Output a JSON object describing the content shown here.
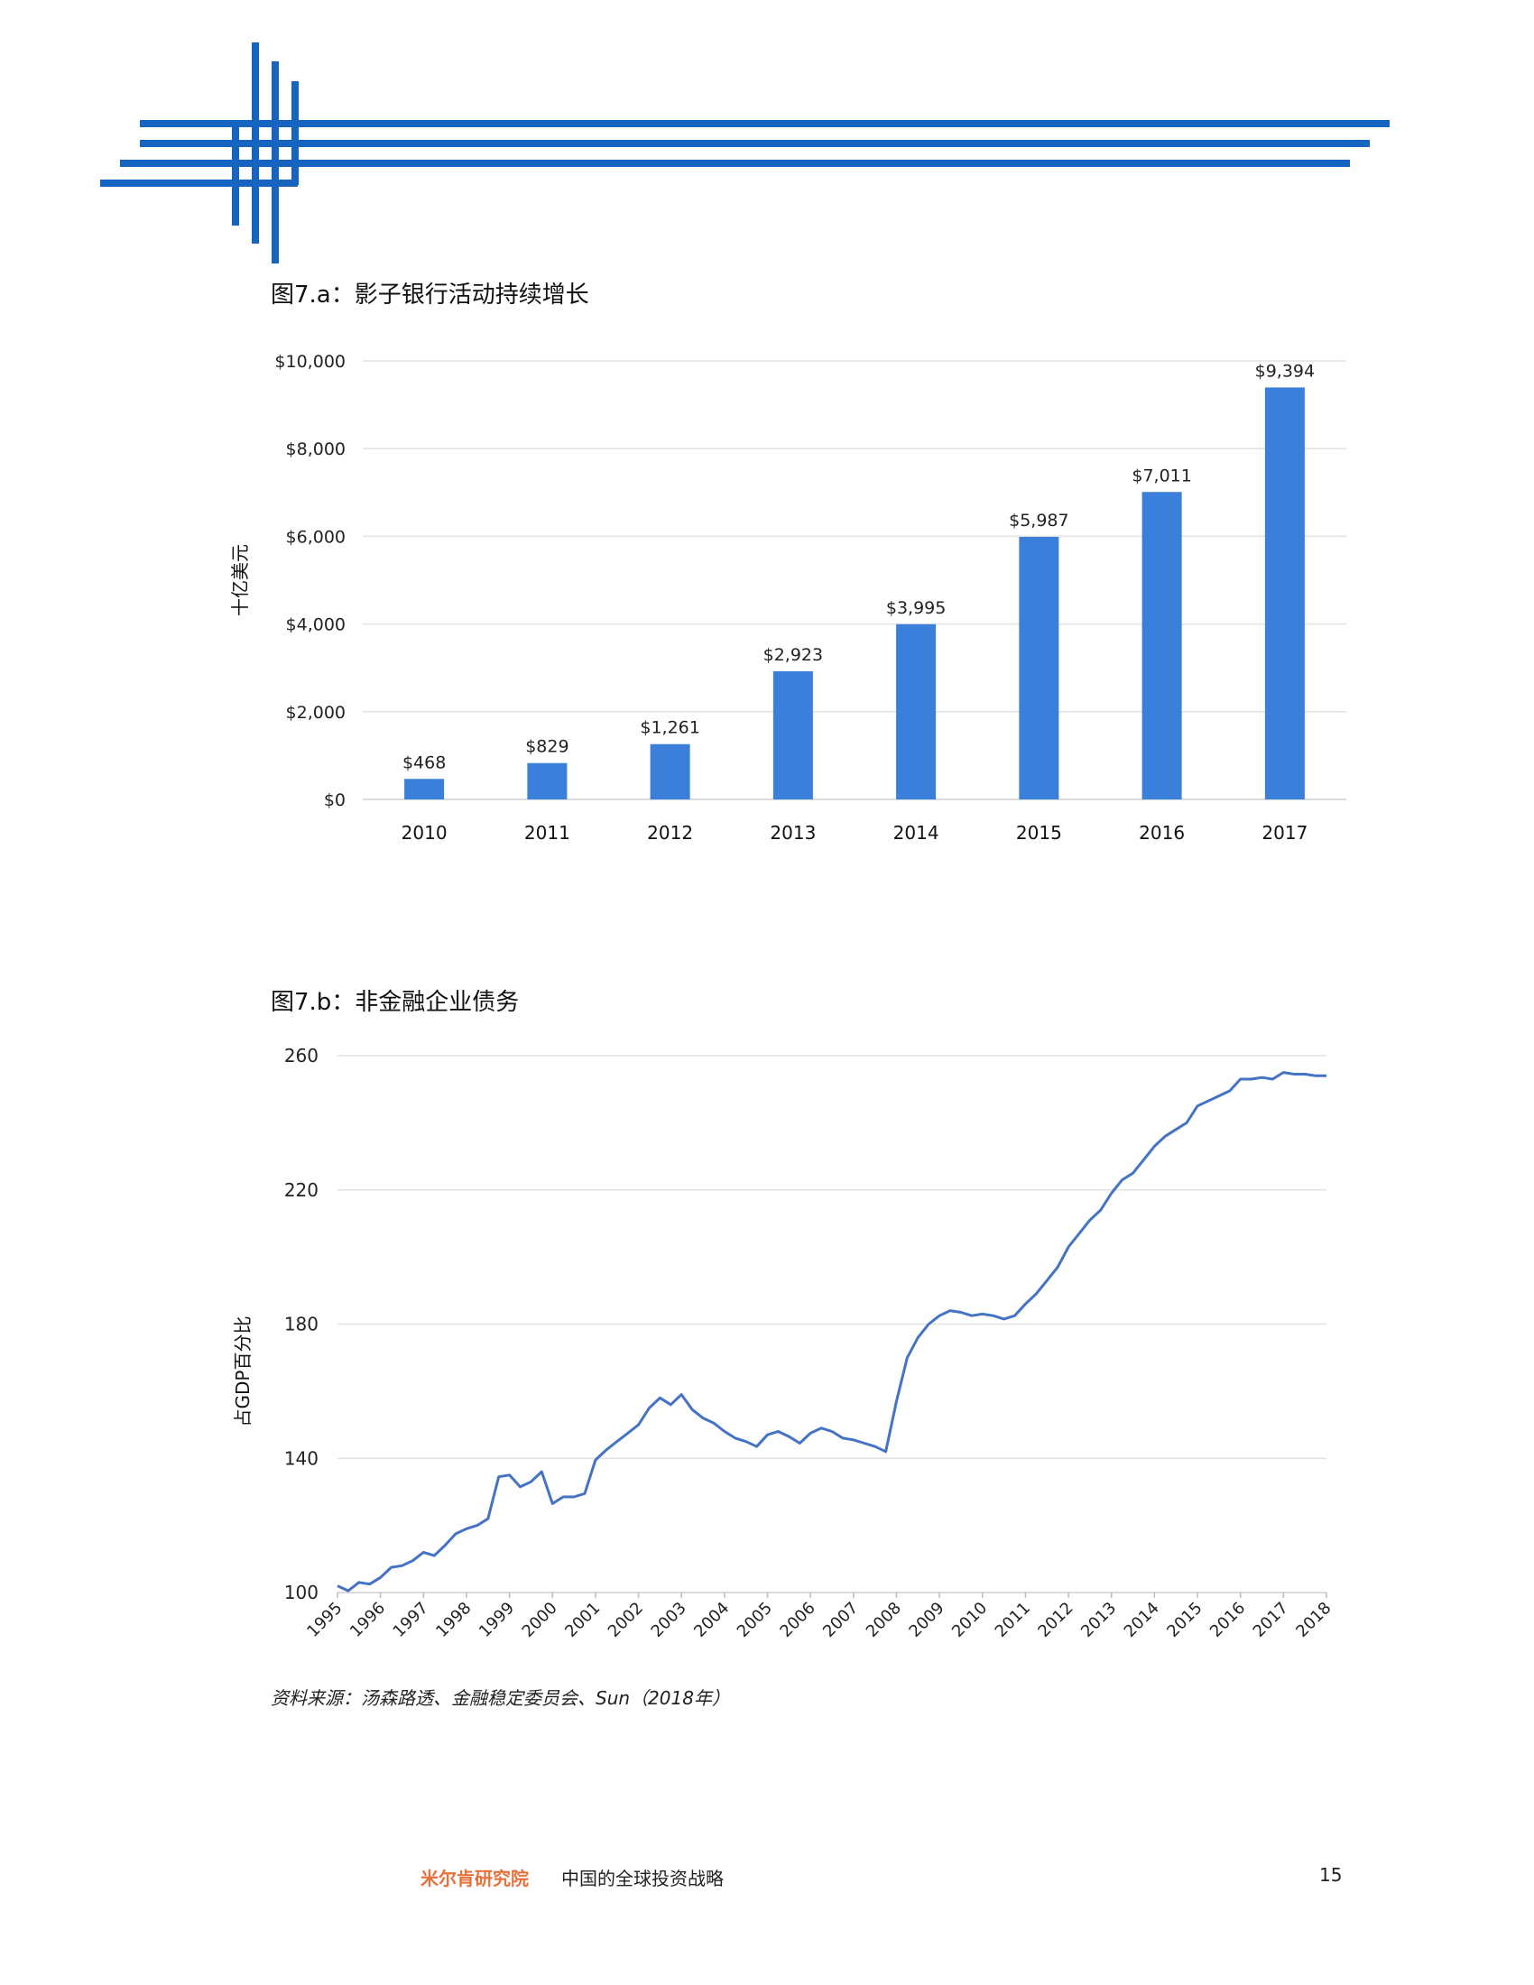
{
  "figures": {
    "a_title": "图7.a：影子银行活动持续增长",
    "b_title": "图7.b：非金融企业债务"
  },
  "source_note": "资料来源：汤森路透、金融稳定委员会、Sun（2018年）",
  "footer": {
    "org": "米尔肯研究院",
    "title": "中国的全球投资战略",
    "page": "15"
  },
  "colors": {
    "accent_blue": "#1565c0",
    "bar_blue": "#3a7fd9",
    "line_blue": "#4472c4",
    "footer_orange": "#e8703a"
  },
  "chart_data": [
    {
      "type": "bar",
      "categories": [
        "2010",
        "2011",
        "2012",
        "2013",
        "2014",
        "2015",
        "2016",
        "2017"
      ],
      "values": [
        468,
        829,
        1261,
        2923,
        3995,
        5987,
        7011,
        9394
      ],
      "data_labels": [
        "$468",
        "$829",
        "$1,261",
        "$2,923",
        "$3,995",
        "$5,987",
        "$7,011",
        "$9,394"
      ],
      "ylabel": "十亿美元",
      "ylim": [
        0,
        10000
      ],
      "yticks": [
        0,
        2000,
        4000,
        6000,
        8000,
        10000
      ],
      "ytick_labels": [
        "$0",
        "$2,000",
        "$4,000",
        "$6,000",
        "$8,000",
        "$10,000"
      ],
      "grid": true
    },
    {
      "type": "line",
      "ylabel": "占GDP百分比",
      "ylim": [
        100,
        260
      ],
      "yticks": [
        100,
        140,
        180,
        220,
        260
      ],
      "ytick_labels": [
        "100",
        "140",
        "180",
        "220",
        "260"
      ],
      "xlim": [
        1995,
        2018
      ],
      "xticks": [
        "1995",
        "1996",
        "1997",
        "1998",
        "1999",
        "2000",
        "2001",
        "2002",
        "2003",
        "2004",
        "2005",
        "2006",
        "2007",
        "2008",
        "2009",
        "2010",
        "2011",
        "2012",
        "2013",
        "2014",
        "2015",
        "2016",
        "2017",
        "2018"
      ],
      "grid": true,
      "x": [
        1995.0,
        1995.25,
        1995.5,
        1995.75,
        1996.0,
        1996.25,
        1996.5,
        1996.75,
        1997.0,
        1997.25,
        1997.5,
        1997.75,
        1998.0,
        1998.25,
        1998.5,
        1998.75,
        1999.0,
        1999.25,
        1999.5,
        1999.75,
        2000.0,
        2000.25,
        2000.5,
        2000.75,
        2001.0,
        2001.25,
        2001.5,
        2001.75,
        2002.0,
        2002.25,
        2002.5,
        2002.75,
        2003.0,
        2003.25,
        2003.5,
        2003.75,
        2004.0,
        2004.25,
        2004.5,
        2004.75,
        2005.0,
        2005.25,
        2005.5,
        2005.75,
        2006.0,
        2006.25,
        2006.5,
        2006.75,
        2007.0,
        2007.25,
        2007.5,
        2007.75,
        2008.0,
        2008.25,
        2008.5,
        2008.75,
        2009.0,
        2009.25,
        2009.5,
        2009.75,
        2010.0,
        2010.25,
        2010.5,
        2010.75,
        2011.0,
        2011.25,
        2011.5,
        2011.75,
        2012.0,
        2012.25,
        2012.5,
        2012.75,
        2013.0,
        2013.25,
        2013.5,
        2013.75,
        2014.0,
        2014.25,
        2014.5,
        2014.75,
        2015.0,
        2015.25,
        2015.5,
        2015.75,
        2016.0,
        2016.25,
        2016.5,
        2016.75,
        2017.0,
        2017.25,
        2017.5,
        2017.75,
        2018.0
      ],
      "values": [
        102,
        100.5,
        103,
        102.5,
        104.5,
        107.5,
        108,
        109.5,
        112,
        111,
        114,
        117.5,
        119,
        120,
        122,
        134.5,
        135,
        131.5,
        133,
        136,
        126.5,
        128.5,
        128.5,
        129.5,
        139.5,
        142.5,
        145,
        147.5,
        150,
        155,
        158,
        156,
        159,
        154.5,
        152,
        150.5,
        148,
        146,
        145,
        143.5,
        147,
        148,
        146.5,
        144.5,
        147.5,
        149,
        148,
        146,
        145.5,
        144.5,
        143.5,
        142,
        157,
        170,
        176,
        180,
        182.5,
        184,
        183.5,
        182.5,
        183,
        182.5,
        181.5,
        182.5,
        186,
        189,
        193,
        197,
        203,
        207,
        211,
        214,
        219,
        223,
        225,
        229,
        233,
        236,
        238,
        240,
        245,
        246.5,
        248,
        249.5,
        253,
        253,
        253.5,
        253,
        255,
        254.5,
        254.5,
        254,
        254
      ]
    }
  ]
}
